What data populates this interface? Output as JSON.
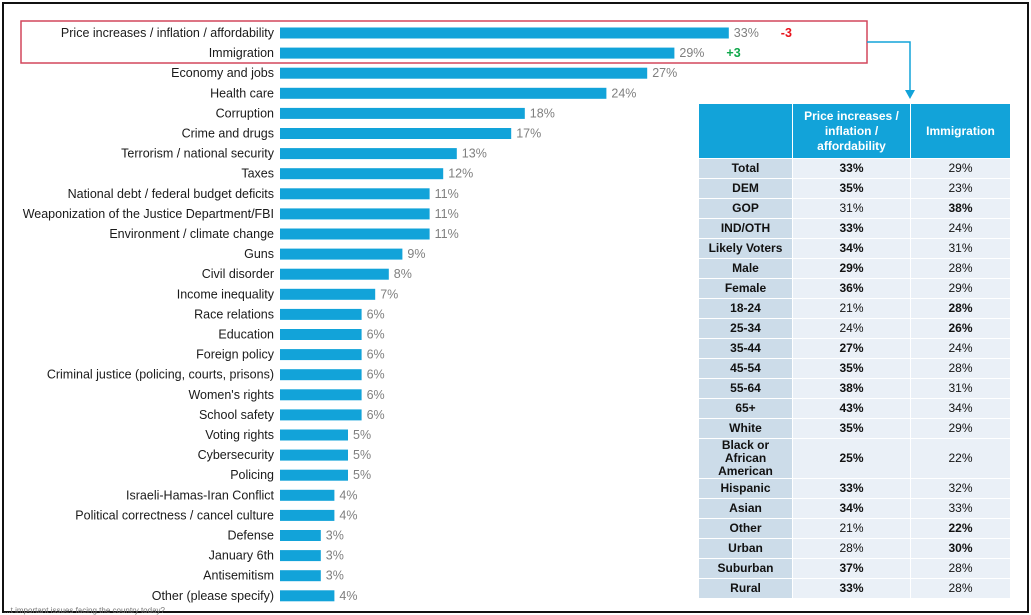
{
  "chart_data": {
    "type": "bar",
    "orientation": "horizontal",
    "title": "",
    "categories": [
      "Price increases / inflation / affordability",
      "Immigration",
      "Economy and jobs",
      "Health care",
      "Corruption",
      "Crime and drugs",
      "Terrorism / national security",
      "Taxes",
      "National debt / federal budget deficits",
      "Weaponization of the Justice Department/FBI",
      "Environment / climate change",
      "Guns",
      "Civil disorder",
      "Income inequality",
      "Race relations",
      "Education",
      "Foreign policy",
      "Criminal justice (policing, courts, prisons)",
      "Women's rights",
      "School safety",
      "Voting rights",
      "Cybersecurity",
      "Policing",
      "Israeli-Hamas-Iran Conflict",
      "Political correctness / cancel culture",
      "Defense",
      "January 6th",
      "Antisemitism",
      "Other (please specify)"
    ],
    "values": [
      33,
      29,
      27,
      24,
      18,
      17,
      13,
      12,
      11,
      11,
      11,
      9,
      8,
      7,
      6,
      6,
      6,
      6,
      6,
      6,
      5,
      5,
      5,
      4,
      4,
      3,
      3,
      3,
      4
    ],
    "value_labels": [
      "33%",
      "29%",
      "27%",
      "24%",
      "18%",
      "17%",
      "13%",
      "12%",
      "11%",
      "11%",
      "11%",
      "9%",
      "8%",
      "7%",
      "6%",
      "6%",
      "6%",
      "6%",
      "6%",
      "6%",
      "5%",
      "5%",
      "5%",
      "4%",
      "4%",
      "3%",
      "3%",
      "3%",
      "4%"
    ],
    "xlim": [
      0,
      33
    ],
    "bar_color": "#12a3d9",
    "changes": [
      {
        "category": "Price increases / inflation / affordability",
        "label": "-3",
        "color": "#e8121b"
      },
      {
        "category": "Immigration",
        "label": "+3",
        "color": "#10a84b"
      }
    ],
    "highlight_box_color": "#d2475c",
    "arrow_color": "#12a3d9"
  },
  "crosstab": {
    "headers": [
      "",
      "Price increases / inflation / affordability",
      "Immigration"
    ],
    "rows": [
      {
        "segment": "Total",
        "price": "33%",
        "immigration": "29%",
        "bold": "price"
      },
      {
        "segment": "DEM",
        "price": "35%",
        "immigration": "23%",
        "bold": "price"
      },
      {
        "segment": "GOP",
        "price": "31%",
        "immigration": "38%",
        "bold": "immigration"
      },
      {
        "segment": "IND/OTH",
        "price": "33%",
        "immigration": "24%",
        "bold": "price"
      },
      {
        "segment": "Likely Voters",
        "price": "34%",
        "immigration": "31%",
        "bold": "price"
      },
      {
        "segment": "Male",
        "price": "29%",
        "immigration": "28%",
        "bold": "price"
      },
      {
        "segment": "Female",
        "price": "36%",
        "immigration": "29%",
        "bold": "price"
      },
      {
        "segment": "18-24",
        "price": "21%",
        "immigration": "28%",
        "bold": "immigration"
      },
      {
        "segment": "25-34",
        "price": "24%",
        "immigration": "26%",
        "bold": "immigration"
      },
      {
        "segment": "35-44",
        "price": "27%",
        "immigration": "24%",
        "bold": "price"
      },
      {
        "segment": "45-54",
        "price": "35%",
        "immigration": "28%",
        "bold": "price"
      },
      {
        "segment": "55-64",
        "price": "38%",
        "immigration": "31%",
        "bold": "price"
      },
      {
        "segment": "65+",
        "price": "43%",
        "immigration": "34%",
        "bold": "price"
      },
      {
        "segment": "White",
        "price": "35%",
        "immigration": "29%",
        "bold": "price"
      },
      {
        "segment": "Black or African American",
        "price": "25%",
        "immigration": "22%",
        "bold": "price"
      },
      {
        "segment": "Hispanic",
        "price": "33%",
        "immigration": "32%",
        "bold": "price"
      },
      {
        "segment": "Asian",
        "price": "34%",
        "immigration": "33%",
        "bold": "price"
      },
      {
        "segment": "Other",
        "price": "21%",
        "immigration": "22%",
        "bold": "immigration"
      },
      {
        "segment": "Urban",
        "price": "28%",
        "immigration": "30%",
        "bold": "immigration"
      },
      {
        "segment": "Suburban",
        "price": "37%",
        "immigration": "28%",
        "bold": "price"
      },
      {
        "segment": "Rural",
        "price": "33%",
        "immigration": "28%",
        "bold": "price"
      }
    ]
  },
  "footnote": "...t important issues facing the country today?"
}
